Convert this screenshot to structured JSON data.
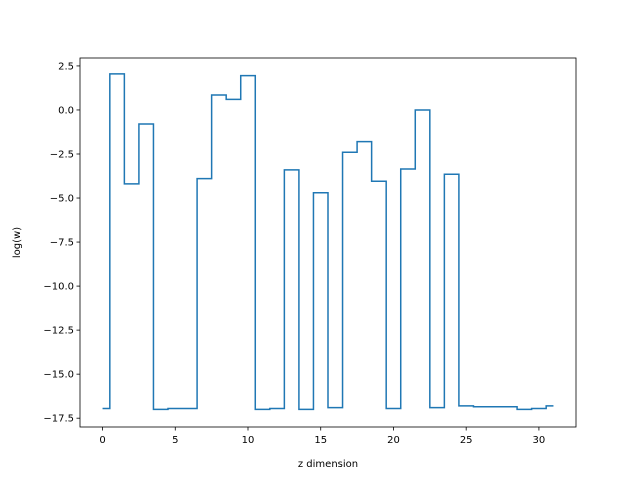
{
  "chart_data": {
    "type": "line",
    "drawstyle": "steps-mid",
    "title": "",
    "xlabel": "z dimension",
    "ylabel": "log(w)",
    "xlim": [
      -1.55,
      32.55
    ],
    "ylim": [
      -18.0,
      2.95
    ],
    "grid": false,
    "xticks": [
      0,
      5,
      10,
      15,
      20,
      25,
      30
    ],
    "xtick_labels": [
      "0",
      "5",
      "10",
      "15",
      "20",
      "25",
      "30"
    ],
    "yticks": [
      2.5,
      0.0,
      -2.5,
      -5.0,
      -7.5,
      -10.0,
      -12.5,
      -15.0,
      -17.5
    ],
    "ytick_labels": [
      "2.5",
      "0.0",
      "−2.5",
      "−5.0",
      "−7.5",
      "−10.0",
      "−12.5",
      "−15.0",
      "−17.5"
    ],
    "series": [
      {
        "color": "#1f77b4",
        "x": [
          0,
          1,
          2,
          3,
          4,
          5,
          6,
          7,
          8,
          9,
          10,
          11,
          12,
          13,
          14,
          15,
          16,
          17,
          18,
          19,
          20,
          21,
          22,
          23,
          24,
          25,
          26,
          27,
          28,
          29,
          30,
          31
        ],
        "y": [
          -16.95,
          2.05,
          -4.2,
          -0.8,
          -17.0,
          -16.95,
          -16.95,
          -3.9,
          0.85,
          0.6,
          1.95,
          -17.0,
          -16.95,
          -3.4,
          -17.0,
          -4.7,
          -16.9,
          -2.4,
          -1.8,
          -4.05,
          -16.95,
          -3.35,
          0.0,
          -16.9,
          -3.65,
          -16.8,
          -16.85,
          -16.85,
          -16.85,
          -17.0,
          -16.95,
          -16.8
        ]
      }
    ]
  }
}
